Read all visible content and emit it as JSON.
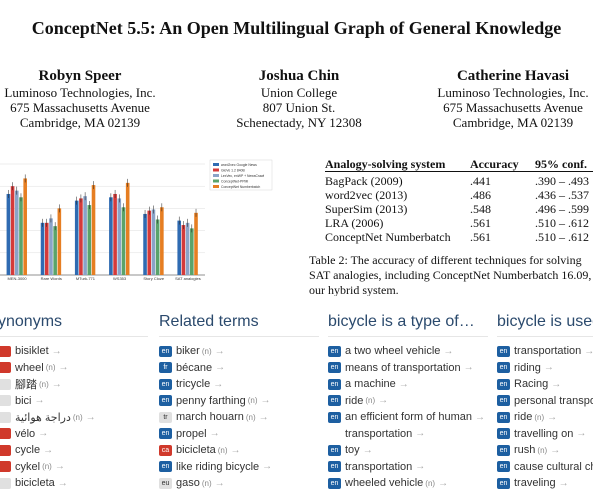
{
  "title": "ConceptNet 5.5: An Open Multilingual Graph of General Knowledge",
  "authors": [
    {
      "name": "Robyn Speer",
      "lines": [
        "Luminoso Technologies, Inc.",
        "675 Massachusetts Avenue",
        "Cambridge, MA 02139"
      ]
    },
    {
      "name": "Joshua Chin",
      "lines": [
        "Union College",
        "807 Union St.",
        "Schenectady, NY 12308"
      ]
    },
    {
      "name": "Catherine Havasi",
      "lines": [
        "Luminoso Technologies, Inc.",
        "675 Massachusetts Avenue",
        "Cambridge, MA 02139"
      ]
    }
  ],
  "chart_data": {
    "type": "bar",
    "categories": [
      "MEN-3000",
      "Rare Words",
      "MTurk-771",
      "WS353",
      "Story Cloze",
      "SAT analogies"
    ],
    "legend": [
      "word2vec Google News",
      "GloVe 1.2 840B",
      "LexVec, enWP + NewsCrawl",
      "ConceptNet-PPMI",
      "ConceptNet Numberbatch"
    ],
    "colors": [
      "#2f6bb2",
      "#d43a3a",
      "#8aa3c8",
      "#5aa36a",
      "#e67e22"
    ],
    "series": [
      {
        "name": "word2vec Google News",
        "values": [
          0.73,
          0.47,
          0.67,
          0.7,
          0.55,
          0.49
        ]
      },
      {
        "name": "GloVe 1.2 840B",
        "values": [
          0.8,
          0.47,
          0.69,
          0.73,
          0.58,
          0.45
        ]
      },
      {
        "name": "LexVec, enWP + NewsCrawl",
        "values": [
          0.76,
          0.51,
          0.71,
          0.69,
          0.59,
          0.47
        ]
      },
      {
        "name": "ConceptNet-PPMI",
        "values": [
          0.7,
          0.44,
          0.63,
          0.61,
          0.5,
          0.42
        ]
      },
      {
        "name": "ConceptNet Numberbatch",
        "values": [
          0.87,
          0.6,
          0.81,
          0.83,
          0.61,
          0.56
        ]
      }
    ],
    "ylim": [
      0,
      1
    ]
  },
  "table": {
    "headers": [
      "Analogy-solving system",
      "Accuracy",
      "95% conf."
    ],
    "rows": [
      [
        "BagPack (2009)",
        ".441",
        ".390 – .493"
      ],
      [
        "word2vec (2013)",
        ".486",
        ".436 – .537"
      ],
      [
        "SuperSim (2013)",
        ".548",
        ".496 – .599"
      ],
      [
        "LRA (2006)",
        ".561",
        ".510 – .612"
      ],
      [
        "ConceptNet Numberbatch",
        ".561",
        ".510 – .612"
      ]
    ]
  },
  "caption": [
    "Table 2: The accuracy of different techniques for solving",
    "SAT analogies, including ConceptNet Numberbatch 16.09,",
    "our hybrid system."
  ],
  "panel": {
    "columns": [
      {
        "heading": "ynonyms",
        "items": [
          {
            "lang": "",
            "color": "red",
            "text": "bisiklet",
            "n": false
          },
          {
            "lang": "",
            "color": "red",
            "text": "wheel",
            "n": true
          },
          {
            "lang": "",
            "color": "lt",
            "text": "腳踏",
            "n": true
          },
          {
            "lang": "",
            "color": "lt",
            "text": "bici",
            "n": false
          },
          {
            "lang": "",
            "color": "lt",
            "text": "دراجة هوائية",
            "n": true
          },
          {
            "lang": "",
            "color": "red",
            "text": "vélo",
            "n": false
          },
          {
            "lang": "",
            "color": "red",
            "text": "cycle",
            "n": false
          },
          {
            "lang": "",
            "color": "red",
            "text": "cykel",
            "n": true
          },
          {
            "lang": "",
            "color": "lt",
            "text": "bicicleta",
            "n": false
          }
        ]
      },
      {
        "heading": "Related terms",
        "items": [
          {
            "lang": "en",
            "color": "",
            "text": "biker",
            "n": true
          },
          {
            "lang": "fr",
            "color": "",
            "text": "bécane",
            "n": false
          },
          {
            "lang": "en",
            "color": "",
            "text": "tricycle",
            "n": false
          },
          {
            "lang": "en",
            "color": "",
            "text": "penny farthing",
            "n": true
          },
          {
            "lang": "tr",
            "color": "lt",
            "text": "march houarn",
            "n": true
          },
          {
            "lang": "en",
            "color": "",
            "text": "propel",
            "n": false
          },
          {
            "lang": "ca",
            "color": "red",
            "text": "bicicleta",
            "n": true
          },
          {
            "lang": "en",
            "color": "",
            "text": "like riding bicycle",
            "n": false
          },
          {
            "lang": "eu",
            "color": "lt",
            "text": "gaso",
            "n": true
          }
        ]
      },
      {
        "heading": "bicycle is a type of…",
        "items": [
          {
            "lang": "en",
            "color": "",
            "text": "a two wheel vehicle",
            "n": false
          },
          {
            "lang": "en",
            "color": "",
            "text": "means of transportation",
            "n": false
          },
          {
            "lang": "en",
            "color": "",
            "text": "a machine",
            "n": false
          },
          {
            "lang": "en",
            "color": "",
            "text": "ride",
            "n": true
          },
          {
            "lang": "en",
            "color": "",
            "text": "an efficient form of human",
            "n": false
          },
          {
            "lang": "",
            "color": "",
            "text": "transportation",
            "n": false
          },
          {
            "lang": "en",
            "color": "",
            "text": "toy",
            "n": false
          },
          {
            "lang": "en",
            "color": "",
            "text": "transportation",
            "n": false
          },
          {
            "lang": "en",
            "color": "",
            "text": "wheeled vehicle",
            "n": true
          }
        ]
      },
      {
        "heading": "bicycle is used",
        "items": [
          {
            "lang": "en",
            "color": "",
            "text": "transportation",
            "n": false
          },
          {
            "lang": "en",
            "color": "",
            "text": "riding",
            "n": false
          },
          {
            "lang": "en",
            "color": "",
            "text": "Racing",
            "n": false
          },
          {
            "lang": "en",
            "color": "",
            "text": "personal transport",
            "n": false
          },
          {
            "lang": "en",
            "color": "",
            "text": "ride",
            "n": true
          },
          {
            "lang": "en",
            "color": "",
            "text": "travelling on",
            "n": false
          },
          {
            "lang": "en",
            "color": "",
            "text": "rush",
            "n": true
          },
          {
            "lang": "en",
            "color": "",
            "text": "cause cultural cha",
            "n": false
          },
          {
            "lang": "en",
            "color": "",
            "text": "traveling",
            "n": false
          }
        ]
      }
    ]
  }
}
